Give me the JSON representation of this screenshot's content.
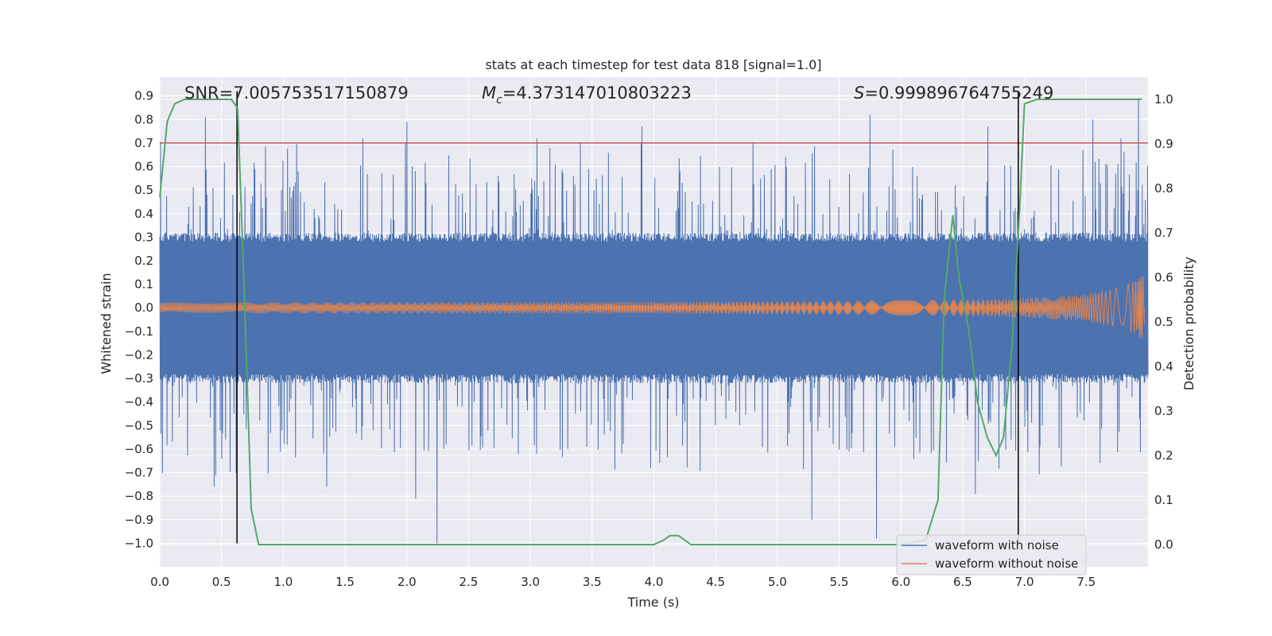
{
  "chart_data": {
    "type": "line",
    "title": "stats at each timestep for test data 818 [signal=1.0]",
    "xlabel": "Time (s)",
    "ylabel": "Whitened strain",
    "ylabel_right": "Detection probability",
    "xlim": [
      0.0,
      8.0
    ],
    "ylim": [
      -1.1,
      0.98
    ],
    "ylim_right": [
      -0.05,
      1.05
    ],
    "x_ticks": [
      0.0,
      0.5,
      1.0,
      1.5,
      2.0,
      2.5,
      3.0,
      3.5,
      4.0,
      4.5,
      5.0,
      5.5,
      6.0,
      6.5,
      7.0,
      7.5
    ],
    "x_tick_labels": [
      "0.0",
      "0.5",
      "1.0",
      "1.5",
      "2.0",
      "2.5",
      "3.0",
      "3.5",
      "4.0",
      "4.5",
      "5.0",
      "5.5",
      "6.0",
      "6.5",
      "7.0",
      "7.5"
    ],
    "y_ticks": [
      0.9,
      0.8,
      0.7,
      0.6,
      0.5,
      0.4,
      0.3,
      0.2,
      0.1,
      0.0,
      -0.1,
      -0.2,
      -0.3,
      -0.4,
      -0.5,
      -0.6,
      -0.7,
      -0.8,
      -0.9,
      -1.0
    ],
    "y_tick_labels": [
      "0.9",
      "0.8",
      "0.7",
      "0.6",
      "0.5",
      "0.4",
      "0.3",
      "0.2",
      "0.1",
      "0.0",
      "−0.1",
      "−0.2",
      "−0.3",
      "−0.4",
      "−0.5",
      "−0.6",
      "−0.7",
      "−0.8",
      "−0.9",
      "−1.0"
    ],
    "y_right_ticks": [
      1.0,
      0.9,
      0.8,
      0.7,
      0.6,
      0.5,
      0.4,
      0.3,
      0.2,
      0.1,
      0.0
    ],
    "y_right_tick_labels": [
      "1.0",
      "0.9",
      "0.8",
      "0.7",
      "0.6",
      "0.5",
      "0.4",
      "0.3",
      "0.2",
      "0.1",
      "0.0"
    ],
    "grid": true,
    "annotations": {
      "snr": "SNR=7.005753517150879",
      "mc_symbol": "M",
      "mc_sub": "c",
      "mc_value": "=4.373147010803223",
      "s_symbol": "S",
      "s_value": "=0.999896764755249"
    },
    "threshold_line": {
      "y": 0.7,
      "color": "#c44e52"
    },
    "vertical_markers": [
      0.625,
      6.95
    ],
    "series": [
      {
        "name": "waveform with noise",
        "color": "#4c72b0",
        "description": "dense noisy strain, core amplitude about ±0.32, spikes up to about 0.89 and down to -1.0",
        "core_amplitude": 0.32,
        "spike_peaks": [
          {
            "t": 0.37,
            "v": 0.81
          },
          {
            "t": 2.0,
            "v": 0.79
          },
          {
            "t": 3.05,
            "v": 0.72
          },
          {
            "t": 3.9,
            "v": 0.77
          },
          {
            "t": 5.75,
            "v": 0.82
          },
          {
            "t": 6.7,
            "v": 0.77
          },
          {
            "t": 7.55,
            "v": 0.8
          },
          {
            "t": 7.92,
            "v": 0.89
          }
        ],
        "spike_troughs": [
          {
            "t": 0.44,
            "v": -0.76
          },
          {
            "t": 1.35,
            "v": -0.76
          },
          {
            "t": 2.07,
            "v": -0.81
          },
          {
            "t": 2.24,
            "v": -1.0
          },
          {
            "t": 5.28,
            "v": -0.9
          },
          {
            "t": 5.8,
            "v": -0.98
          },
          {
            "t": 6.6,
            "v": -0.79
          }
        ]
      },
      {
        "name": "waveform without noise",
        "color": "#dd8452",
        "description": "chirp: amplitude grows from about 0.02 to 0.15 with rising frequency, ending near 8.0 s",
        "amplitude_start": 0.02,
        "amplitude_end": 0.15
      },
      {
        "name": "Detection probability",
        "color": "#55a868",
        "axis": "right",
        "t": [
          0.0,
          0.06,
          0.12,
          0.2,
          0.3,
          0.4,
          0.5,
          0.58,
          0.63,
          0.68,
          0.74,
          0.8,
          0.87,
          1.0,
          2.0,
          3.0,
          4.0,
          4.08,
          4.13,
          4.2,
          4.3,
          5.0,
          6.0,
          6.2,
          6.3,
          6.35,
          6.42,
          6.47,
          6.55,
          6.62,
          6.7,
          6.77,
          6.83,
          6.9,
          6.96,
          7.0,
          7.1,
          7.5,
          7.95
        ],
        "p": [
          0.78,
          0.95,
          0.99,
          1.0,
          1.0,
          1.0,
          1.0,
          1.0,
          0.98,
          0.6,
          0.08,
          0.0,
          0.0,
          0.0,
          0.0,
          0.0,
          0.0,
          0.01,
          0.02,
          0.02,
          0.0,
          0.0,
          0.0,
          0.01,
          0.1,
          0.55,
          0.74,
          0.6,
          0.48,
          0.32,
          0.24,
          0.2,
          0.24,
          0.45,
          0.75,
          0.99,
          1.0,
          1.0,
          1.0
        ]
      }
    ],
    "legend": {
      "placement": "lower-right",
      "entries": [
        {
          "label": "waveform with noise",
          "color": "#4c72b0"
        },
        {
          "label": "waveform without noise",
          "color": "#dd8452"
        }
      ]
    }
  }
}
